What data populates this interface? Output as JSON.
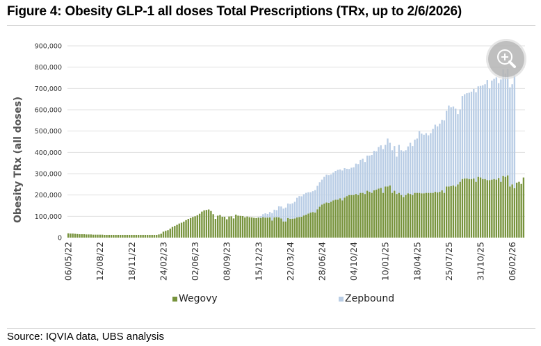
{
  "title": "Figure 4: Obesity GLP-1 all doses Total Prescriptions (TRx, up to 2/6/2026)",
  "source": "Source: IQVIA data, UBS analysis",
  "zoom_button_icon": "zoom-in-icon",
  "colors": {
    "wegovy": "#77933c",
    "zepbound": "#b9cde5",
    "grid": "#e0e0e0"
  },
  "chart_data": {
    "type": "bar",
    "stacked": true,
    "title": "Figure 4: Obesity GLP-1 all doses Total Prescriptions (TRx, up to 2/6/2026)",
    "xlabel": "",
    "ylabel": "Obesity TRx (all doses)",
    "ylim": [
      0,
      900000
    ],
    "yticks": [
      0,
      100000,
      200000,
      300000,
      400000,
      500000,
      600000,
      700000,
      800000,
      900000
    ],
    "ytick_labels": [
      "0",
      "100,000",
      "200,000",
      "300,000",
      "400,000",
      "500,000",
      "600,000",
      "700,000",
      "800,000",
      "900,000"
    ],
    "x_start": "06/05/22",
    "x_end": "06/02/26",
    "x_frequency": "weekly",
    "xtick_labels": [
      "06/05/22",
      "12/08/22",
      "18/11/22",
      "24/02/23",
      "02/06/23",
      "08/09/23",
      "15/12/23",
      "22/03/24",
      "28/06/24",
      "04/10/24",
      "10/01/25",
      "18/04/25",
      "25/07/25",
      "31/10/25",
      "06/02/26"
    ],
    "xtick_interval_weeks": 14,
    "grid": true,
    "legend_position": "bottom",
    "series": [
      {
        "name": "Wegovy",
        "values": [
          20000,
          19000,
          19000,
          18000,
          17000,
          16000,
          16000,
          16000,
          15000,
          15000,
          15000,
          14000,
          14000,
          14000,
          14000,
          14000,
          13000,
          13000,
          13000,
          13000,
          13000,
          13000,
          13000,
          13000,
          13000,
          13000,
          13000,
          13000,
          13000,
          13000,
          13000,
          13000,
          13000,
          13000,
          13000,
          13000,
          13000,
          13000,
          13000,
          13000,
          15000,
          18000,
          28000,
          32000,
          35000,
          42000,
          50000,
          55000,
          60000,
          66000,
          70000,
          75000,
          82000,
          88000,
          92000,
          97000,
          100000,
          105000,
          112000,
          122000,
          128000,
          130000,
          132000,
          125000,
          110000,
          88000,
          103000,
          106000,
          98000,
          98000,
          86000,
          99000,
          100000,
          90000,
          108000,
          103000,
          102000,
          101000,
          95000,
          99000,
          96000,
          95000,
          93000,
          92000,
          94000,
          92000,
          96000,
          94000,
          94000,
          95000,
          80000,
          95000,
          96000,
          95000,
          90000,
          76000,
          76000,
          92000,
          88000,
          89000,
          90000,
          95000,
          97000,
          98000,
          104000,
          108000,
          113000,
          118000,
          120000,
          118000,
          133000,
          145000,
          155000,
          160000,
          165000,
          163000,
          168000,
          175000,
          178000,
          178000,
          185000,
          175000,
          188000,
          195000,
          200000,
          200000,
          200000,
          205000,
          200000,
          210000,
          210000,
          205000,
          220000,
          215000,
          210000,
          222000,
          225000,
          230000,
          233000,
          210000,
          240000,
          240000,
          245000,
          210000,
          220000,
          205000,
          210000,
          200000,
          190000,
          200000,
          208000,
          205000,
          200000,
          210000,
          210000,
          210000,
          208000,
          208000,
          210000,
          210000,
          210000,
          210000,
          215000,
          212000,
          215000,
          222000,
          210000,
          240000,
          240000,
          242000,
          245000,
          240000,
          250000,
          262000,
          275000,
          278000,
          278000,
          275000,
          275000,
          278000,
          262000,
          285000,
          282000,
          275000,
          275000,
          270000,
          270000,
          272000,
          275000,
          272000,
          280000,
          262000,
          290000,
          285000,
          292000,
          240000,
          250000,
          232000,
          258000,
          262000,
          252000,
          282000
        ]
      },
      {
        "name": "Zepbound",
        "values": [
          0,
          0,
          0,
          0,
          0,
          0,
          0,
          0,
          0,
          0,
          0,
          0,
          0,
          0,
          0,
          0,
          0,
          0,
          0,
          0,
          0,
          0,
          0,
          0,
          0,
          0,
          0,
          0,
          0,
          0,
          0,
          0,
          0,
          0,
          0,
          0,
          0,
          0,
          0,
          0,
          0,
          0,
          0,
          0,
          0,
          0,
          0,
          0,
          0,
          0,
          0,
          0,
          0,
          0,
          0,
          0,
          0,
          0,
          0,
          0,
          0,
          0,
          0,
          0,
          0,
          0,
          0,
          0,
          0,
          0,
          0,
          0,
          0,
          0,
          0,
          0,
          0,
          0,
          0,
          0,
          0,
          0,
          0,
          0,
          3000,
          8000,
          14000,
          20000,
          17000,
          25000,
          35000,
          36000,
          33000,
          52000,
          56000,
          60000,
          65000,
          68000,
          70000,
          72000,
          78000,
          92000,
          98000,
          96000,
          100000,
          102000,
          100000,
          95000,
          98000,
          105000,
          110000,
          115000,
          117000,
          125000,
          130000,
          130000,
          128000,
          130000,
          135000,
          140000,
          135000,
          140000,
          138000,
          128000,
          122000,
          128000,
          130000,
          142000,
          145000,
          155000,
          160000,
          150000,
          165000,
          170000,
          178000,
          185000,
          180000,
          195000,
          200000,
          205000,
          195000,
          225000,
          200000,
          200000,
          210000,
          175000,
          225000,
          210000,
          215000,
          210000,
          220000,
          240000,
          230000,
          250000,
          255000,
          290000,
          280000,
          275000,
          280000,
          270000,
          280000,
          300000,
          315000,
          310000,
          320000,
          330000,
          340000,
          355000,
          380000,
          370000,
          370000,
          365000,
          330000,
          340000,
          390000,
          395000,
          400000,
          405000,
          410000,
          420000,
          420000,
          425000,
          430000,
          440000,
          445000,
          470000,
          430000,
          465000,
          470000,
          480000,
          445000,
          480000,
          500000,
          485000,
          500000,
          465000,
          470000,
          530000
        ]
      }
    ]
  },
  "legend": [
    {
      "label": "Wegovy",
      "color": "#77933c"
    },
    {
      "label": "Zepbound",
      "color": "#b9cde5"
    }
  ]
}
